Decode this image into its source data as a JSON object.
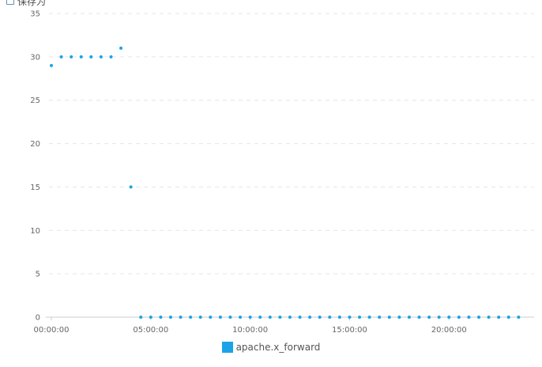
{
  "toolbar": {
    "save_label": "保存为",
    "save_icon": "save-icon"
  },
  "chart_data": {
    "type": "scatter",
    "title": "",
    "xlabel": "",
    "ylabel": "",
    "ylim": [
      0,
      35
    ],
    "yticks": [
      "0",
      "5",
      "10",
      "15",
      "20",
      "25",
      "30",
      "35"
    ],
    "xticks": [
      "00:00:00",
      "05:00:00",
      "10:00:00",
      "15:00:00",
      "20:00:00"
    ],
    "xlim_hours": [
      0,
      24.4
    ],
    "grid": true,
    "legend_position": "bottom",
    "series": [
      {
        "name": "apache.x_forward",
        "color": "#1aa3e8",
        "x_hours": [
          0.0,
          0.5,
          1.0,
          1.5,
          2.0,
          2.5,
          3.0,
          3.5,
          4.0,
          4.5,
          5.0,
          5.5,
          6.0,
          6.5,
          7.0,
          7.5,
          8.0,
          8.5,
          9.0,
          9.5,
          10.0,
          10.5,
          11.0,
          11.5,
          12.0,
          12.5,
          13.0,
          13.5,
          14.0,
          14.5,
          15.0,
          15.5,
          16.0,
          16.5,
          17.0,
          17.5,
          18.0,
          18.5,
          19.0,
          19.5,
          20.0,
          20.5,
          21.0,
          21.5,
          22.0,
          22.5,
          23.0,
          23.5
        ],
        "values": [
          29,
          30,
          30,
          30,
          30,
          30,
          30,
          31,
          15,
          0,
          0,
          0,
          0,
          0,
          0,
          0,
          0,
          0,
          0,
          0,
          0,
          0,
          0,
          0,
          0,
          0,
          0,
          0,
          0,
          0,
          0,
          0,
          0,
          0,
          0,
          0,
          0,
          0,
          0,
          0,
          0,
          0,
          0,
          0,
          0,
          0,
          0,
          0
        ]
      }
    ]
  }
}
